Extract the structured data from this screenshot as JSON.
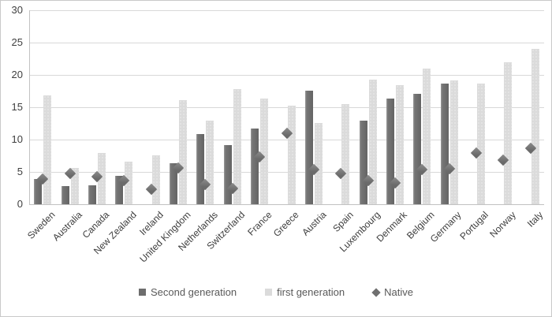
{
  "figure": {
    "title": "",
    "legend": {
      "second_generation_label": "Second generation",
      "first_generation_label": "first generation",
      "native_label": "Native"
    }
  },
  "colors": {
    "second_generation_bar": "#6d6d6d",
    "first_generation_bar": "#dbdbdb",
    "native_marker": "#757575",
    "gridline": "#d8d8d8",
    "axis_line": "#c2c2c2",
    "tick_text": "#3f3f3f",
    "legend_text": "#595959"
  },
  "chart_data": {
    "type": "bar",
    "subtype": "grouped bars with diamond scatter markers",
    "title": "",
    "xlabel": "",
    "ylabel": "",
    "ylim": [
      0,
      30
    ],
    "yticks": [
      0,
      5,
      10,
      15,
      20,
      25,
      30
    ],
    "grid": "horizontal",
    "legend_position": "bottom",
    "categories": [
      "Sweden",
      "Australia",
      "Canada",
      "New Zealand",
      "Ireland",
      "United Kingdom",
      "Netherlands",
      "Switzerland",
      "France",
      "Greece",
      "Austria",
      "Spain",
      "Luxembourg",
      "Denmark",
      "Belgium",
      "Germany",
      "Portugal",
      "Norway",
      "Italy"
    ],
    "series": [
      {
        "name": "Second generation",
        "marker": "bar",
        "color": "#6d6d6d",
        "values": [
          3.9,
          2.8,
          2.9,
          4.4,
          null,
          6.3,
          10.8,
          9.1,
          11.7,
          null,
          17.6,
          null,
          12.9,
          16.3,
          17.1,
          18.7,
          null,
          null,
          null
        ]
      },
      {
        "name": "first generation",
        "marker": "bar",
        "color": "#dbdbdb",
        "values": [
          16.8,
          5.6,
          7.9,
          6.6,
          7.6,
          16.1,
          12.9,
          17.8,
          16.4,
          15.2,
          12.6,
          15.5,
          19.3,
          18.4,
          21.0,
          19.2,
          18.7,
          22.0,
          24.0
        ]
      },
      {
        "name": "Native",
        "marker": "diamond",
        "color": "#757575",
        "values": [
          3.9,
          4.7,
          4.3,
          3.6,
          2.3,
          5.6,
          3.1,
          2.4,
          7.3,
          11.0,
          5.4,
          4.8,
          3.7,
          3.3,
          5.4,
          5.5,
          7.9,
          6.8,
          8.7
        ]
      }
    ]
  }
}
